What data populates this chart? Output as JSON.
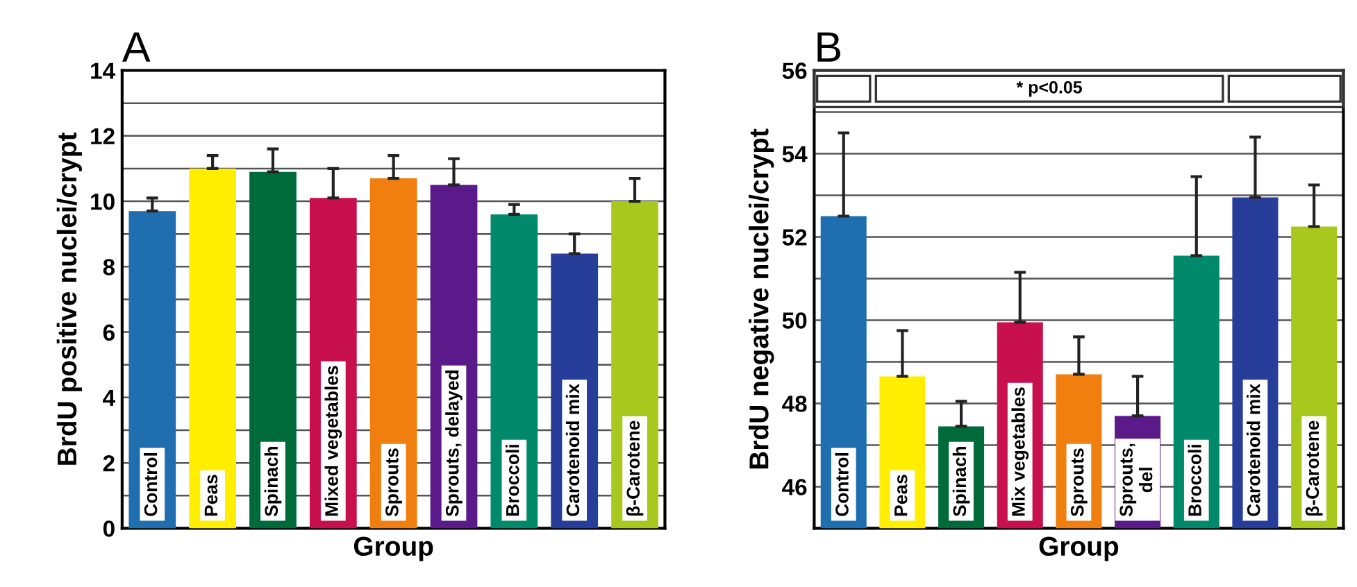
{
  "chart_data": [
    {
      "type": "bar",
      "title": "A",
      "ylabel": "BrdU positive nuclei/crypt",
      "xlabel": "Group",
      "categories": [
        "Control",
        "Peas",
        "Spinach",
        "Mixed vegetables",
        "Sprouts",
        "Sprouts, delayed",
        "Broccoli",
        "Carotenoid mix",
        "β-Carotene"
      ],
      "values": [
        9.7,
        11.0,
        10.9,
        10.1,
        10.7,
        10.5,
        9.6,
        8.4,
        10.0
      ],
      "errors": [
        [
          9.7,
          10.1
        ],
        [
          11.0,
          11.4
        ],
        [
          10.9,
          11.6
        ],
        [
          10.1,
          11.0
        ],
        [
          10.7,
          11.4
        ],
        [
          10.5,
          11.3
        ],
        [
          9.6,
          9.9
        ],
        [
          8.4,
          9.0
        ],
        [
          10.0,
          10.7
        ]
      ],
      "colors": [
        "#1f6fb0",
        "#ffee00",
        "#006b3a",
        "#c8104f",
        "#f07f10",
        "#5a1a8a",
        "#00896a",
        "#263d9a",
        "#a8c81e"
      ],
      "ylim": [
        0,
        14
      ],
      "yticks": [
        0,
        {
          "value": 1,
          "label": null
        },
        2,
        {
          "value": 3,
          "label": null
        },
        4,
        {
          "value": 5,
          "label": null
        },
        6,
        {
          "value": 7,
          "label": null
        },
        8,
        {
          "value": 9,
          "label": null
        },
        10,
        {
          "value": 11,
          "label": null
        },
        12,
        {
          "value": 13,
          "label": null
        },
        14
      ],
      "grid": "y"
    },
    {
      "type": "bar",
      "title": "B",
      "ylabel": "BrdU negative nuclei/crypt",
      "xlabel": "Group",
      "categories": [
        "Control",
        "Peas",
        "Spinach",
        "Mix vegetables",
        "Sprouts",
        "Sprouts,\ndel",
        "Broccoli",
        "Carotenoid mix",
        "β-Carotene"
      ],
      "values": [
        52.5,
        48.65,
        47.45,
        49.95,
        48.7,
        47.7,
        51.55,
        52.95,
        52.25
      ],
      "errors": [
        [
          52.5,
          54.5
        ],
        [
          48.65,
          49.75
        ],
        [
          47.45,
          48.05
        ],
        [
          49.95,
          51.15
        ],
        [
          48.7,
          49.6
        ],
        [
          47.7,
          48.65
        ],
        [
          51.55,
          53.45
        ],
        [
          52.95,
          54.4
        ],
        [
          52.25,
          53.25
        ]
      ],
      "colors": [
        "#1f6fb0",
        "#ffee00",
        "#006b3a",
        "#c8104f",
        "#f07f10",
        "#5a1a8a",
        "#00896a",
        "#263d9a",
        "#a8c81e"
      ],
      "ylim": [
        45,
        56
      ],
      "yticks": [
        {
          "value": 45,
          "label": null
        },
        46,
        {
          "value": 47,
          "label": null
        },
        48,
        {
          "value": 49,
          "label": null
        },
        50,
        {
          "value": 51,
          "label": null
        },
        52,
        {
          "value": 53,
          "label": null
        },
        54,
        {
          "value": 55,
          "label": null
        },
        56
      ],
      "annotations": [
        "* p<0.05"
      ],
      "grid": "y"
    }
  ]
}
